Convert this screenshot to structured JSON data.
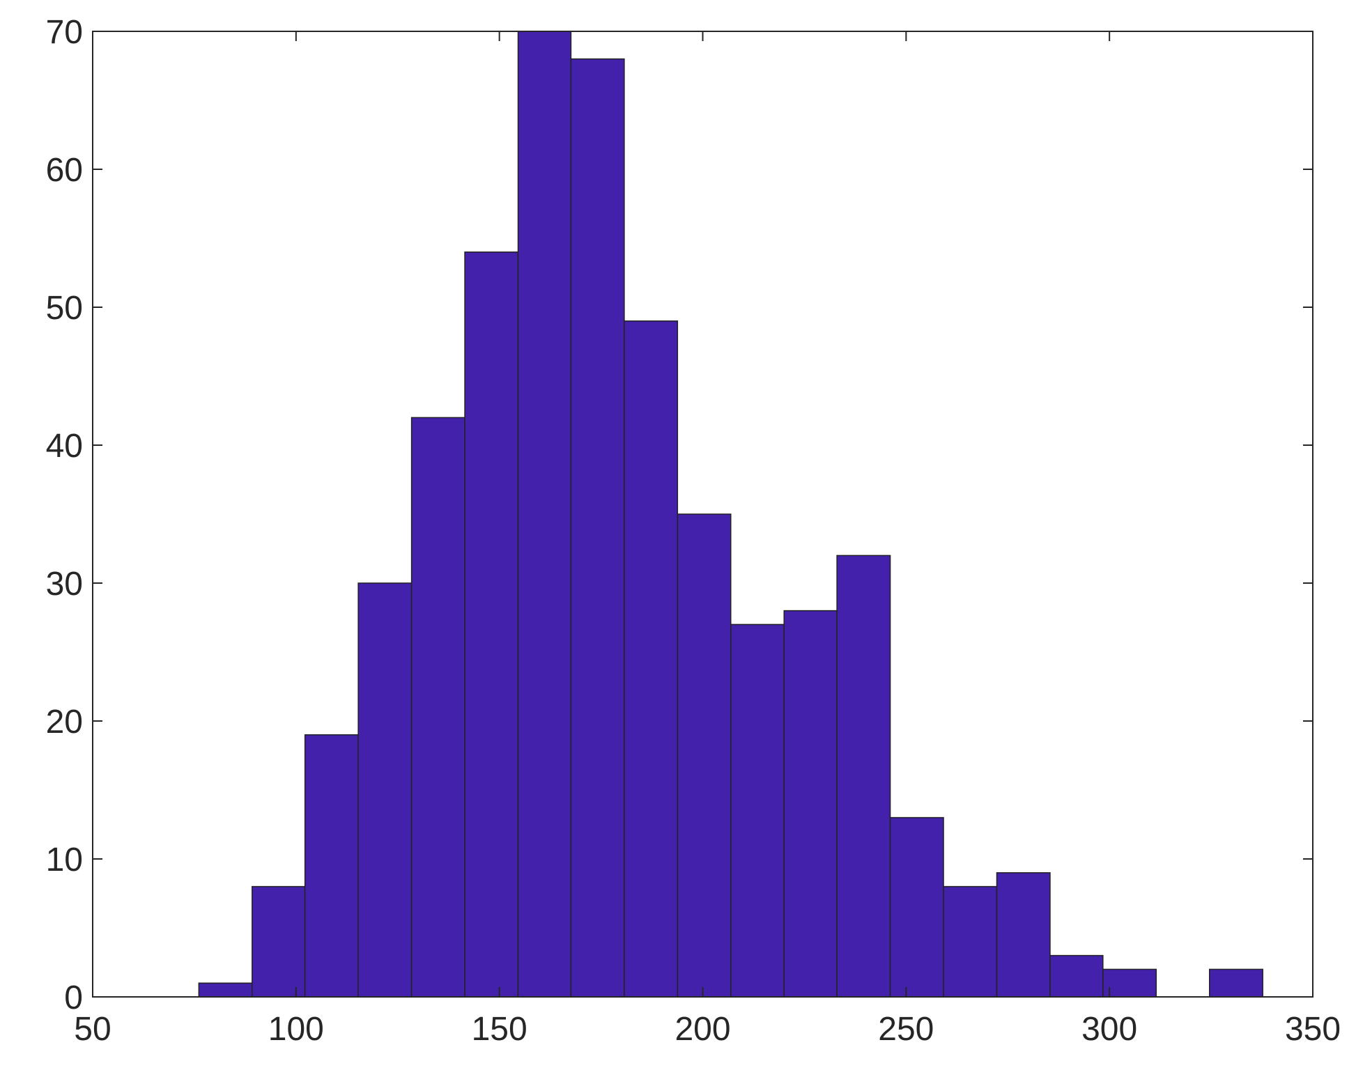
{
  "chart_data": {
    "type": "histogram",
    "bins": [
      76.1,
      89.2,
      102.2,
      115.3,
      128.4,
      141.5,
      154.6,
      167.6,
      180.7,
      193.8,
      206.9,
      220.0,
      233.0,
      246.1,
      259.2,
      272.3,
      285.4,
      298.4,
      311.5,
      324.6,
      337.7
    ],
    "values": [
      1,
      8,
      19,
      30,
      42,
      54,
      70,
      68,
      49,
      35,
      27,
      28,
      32,
      13,
      8,
      9,
      3,
      2,
      0,
      2
    ],
    "color": "#4321ab",
    "xlim": [
      50,
      350
    ],
    "xticks": [
      50,
      100,
      150,
      200,
      250,
      300,
      350
    ],
    "ylim": [
      0,
      70
    ],
    "yticks": [
      0,
      10,
      20,
      30,
      40,
      50,
      60,
      70
    ],
    "grid": false
  }
}
